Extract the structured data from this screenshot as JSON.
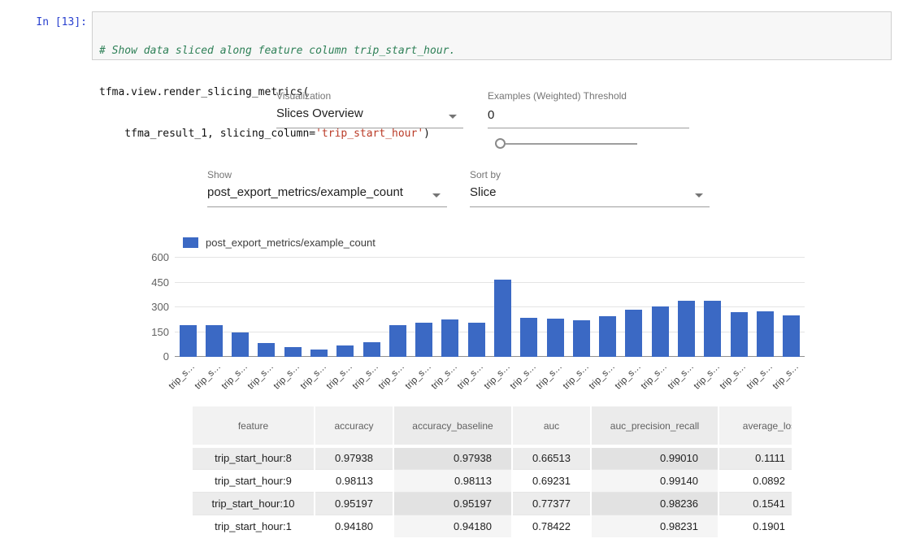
{
  "colors": {
    "bar_blue": "#3b69c4",
    "prompt_blue": "#2a41cf",
    "comment_green": "#2e8057",
    "string_red": "#ba3a26"
  },
  "notebook": {
    "prompt": "In [13]:",
    "code": {
      "comment": "# Show data sliced along feature column trip_start_hour.",
      "line2": "tfma.view.render_slicing_metrics(",
      "line3_pre": "    tfma_result_1, slicing_column=",
      "line3_string": "'trip_start_hour'",
      "line3_post": ")"
    }
  },
  "controls": {
    "visualization": {
      "label": "Visualization",
      "value": "Slices Overview"
    },
    "threshold": {
      "label": "Examples (Weighted) Threshold",
      "value": "0"
    },
    "show": {
      "label": "Show",
      "value": "post_export_metrics/example_count"
    },
    "sort_by": {
      "label": "Sort by",
      "value": "Slice"
    }
  },
  "legend": {
    "label": "post_export_metrics/example_count",
    "color": "#3b69c4"
  },
  "chart_data": {
    "type": "bar",
    "title": "post_export_metrics/example_count",
    "categories": [
      "trip_s…",
      "trip_s…",
      "trip_s…",
      "trip_s…",
      "trip_s…",
      "trip_s…",
      "trip_s…",
      "trip_s…",
      "trip_s…",
      "trip_s…",
      "trip_s…",
      "trip_s…",
      "trip_s…",
      "trip_s…",
      "trip_s…",
      "trip_s…",
      "trip_s…",
      "trip_s…",
      "trip_s…",
      "trip_s…",
      "trip_s…",
      "trip_s…",
      "trip_s…",
      "trip_s…"
    ],
    "values": [
      190,
      190,
      150,
      85,
      60,
      45,
      70,
      90,
      190,
      205,
      225,
      205,
      465,
      235,
      230,
      220,
      245,
      285,
      305,
      340,
      340,
      270,
      275,
      250
    ],
    "ylim": [
      0,
      600
    ],
    "yticks": [
      0,
      150,
      300,
      450,
      600
    ],
    "bar_color": "#3b69c4",
    "xlabel": "",
    "ylabel": "",
    "grid": true,
    "legend_position": "top"
  },
  "table": {
    "columns": [
      "feature",
      "accuracy",
      "accuracy_baseline",
      "auc",
      "auc_precision_recall",
      "average_loss"
    ],
    "rows": [
      [
        "trip_start_hour:8",
        "0.97938",
        "0.97938",
        "0.66513",
        "0.99010",
        "0.1111"
      ],
      [
        "trip_start_hour:9",
        "0.98113",
        "0.98113",
        "0.69231",
        "0.99140",
        "0.0892"
      ],
      [
        "trip_start_hour:10",
        "0.95197",
        "0.95197",
        "0.77377",
        "0.98236",
        "0.1541"
      ],
      [
        "trip_start_hour:1",
        "0.94180",
        "0.94180",
        "0.78422",
        "0.98231",
        "0.1901"
      ]
    ]
  }
}
